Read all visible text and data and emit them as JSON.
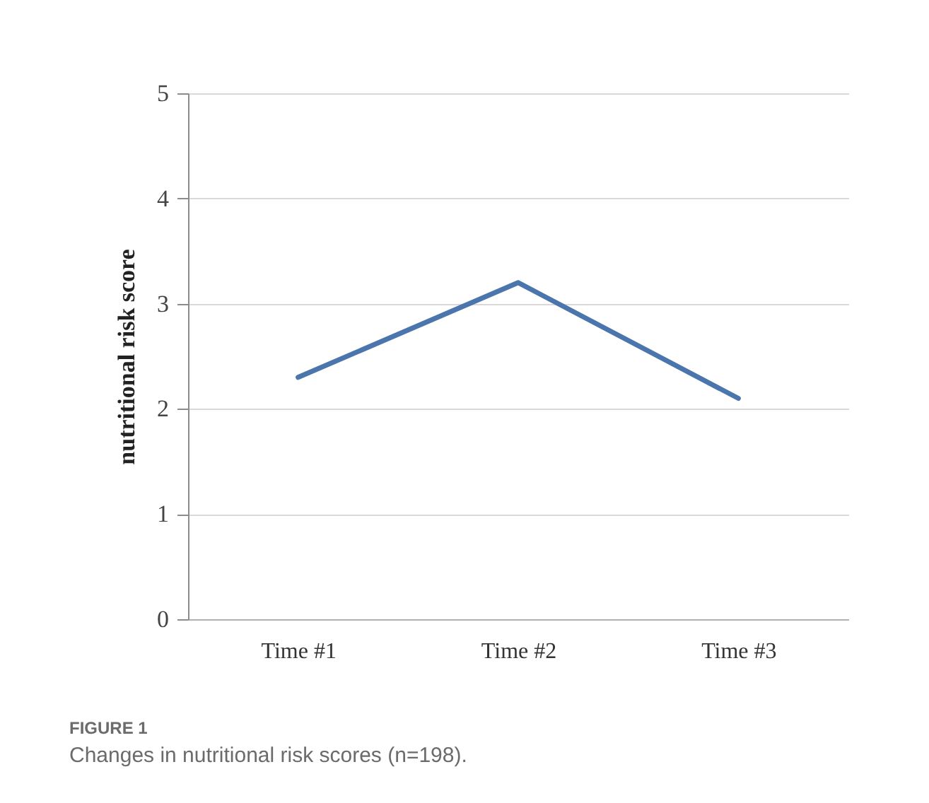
{
  "chart_data": {
    "type": "line",
    "ylabel": "nutritional risk score",
    "categories": [
      "Time #1",
      "Time #2",
      "Time #3"
    ],
    "series": [
      {
        "color": "#4a76ad",
        "values": [
          2.3,
          3.2,
          2.1
        ]
      }
    ],
    "ylim": [
      0,
      5
    ],
    "yticks": [
      0,
      1,
      2,
      3,
      4,
      5
    ],
    "grid": "y",
    "legend": false,
    "marker": "none",
    "line_style": "solid",
    "annotations": [
      "FIGURE 1",
      "Changes in nutritional risk scores (n=198)."
    ]
  }
}
